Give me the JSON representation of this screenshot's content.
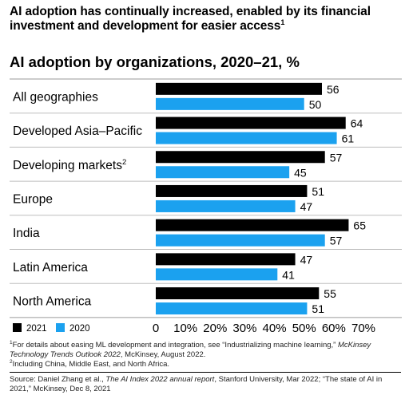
{
  "headline": {
    "text": "AI adoption has continually increased, enabled by its financial investment and development for easier access",
    "footnote_ref": "1"
  },
  "chart_data": {
    "type": "bar",
    "orientation": "horizontal",
    "title": "AI adoption by organizations, 2020–21,",
    "title_unit": "%",
    "categories": [
      "All geographies",
      "Developed Asia–Pacific",
      "Developing markets",
      "Europe",
      "India",
      "Latin America",
      "North America"
    ],
    "category_footnotes": [
      "",
      "",
      "2",
      "",
      "",
      "",
      ""
    ],
    "series": [
      {
        "name": "2021",
        "color": "#000000",
        "values": [
          56,
          64,
          57,
          51,
          65,
          47,
          55
        ]
      },
      {
        "name": "2020",
        "color": "#1BA1EF",
        "values": [
          50,
          61,
          45,
          47,
          57,
          41,
          51
        ]
      }
    ],
    "xlim": [
      0,
      70
    ],
    "xticks": [
      "0",
      "10%",
      "20%",
      "30%",
      "40%",
      "50%",
      "60%",
      "70%"
    ],
    "legend_position": "bottom-left"
  },
  "footnotes": {
    "note1": {
      "marker": "1",
      "prefix": "For details about easing ML development and integration, see “Industrializing machine learning,” ",
      "title": "McKinsey Technology Trends Outlook 2022",
      "suffix": ", McKinsey, August 2022."
    },
    "note2": {
      "marker": "2",
      "text": "Including China, Middle East, and North Africa."
    }
  },
  "source": {
    "prefix": "Source: Daniel Zhang et al., ",
    "title": "The AI Index 2022 annual report",
    "suffix": ", Stanford University, Mar 2022; “The state of AI in 2021,” McKinsey, Dec 8, 2021"
  }
}
